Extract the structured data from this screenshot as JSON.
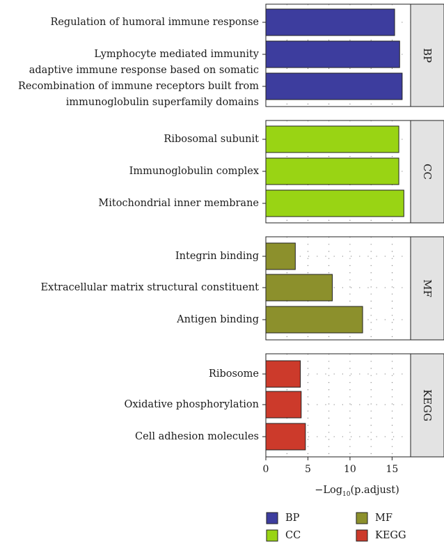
{
  "chart_data": {
    "type": "bar",
    "orientation": "horizontal",
    "xlabel": "−Log10(p.adjust)",
    "xlabel_main": "−Log",
    "xlabel_sub": "10",
    "xlabel_rest": "(p.adjust)",
    "xlim": [
      0,
      17.2
    ],
    "xticks": [
      "0",
      "5",
      "10",
      "15"
    ],
    "grid": "dotted",
    "legend_position": "bottom",
    "facets": [
      {
        "name": "BP",
        "color": "#3d3d9e",
        "items": [
          {
            "lines": [
              "Regulation of humoral immune response"
            ],
            "value": 15.3
          },
          {
            "lines": [
              "Lymphocyte mediated immunity"
            ],
            "value": 15.9
          },
          {
            "lines": [
              "adaptive immune response based on somatic",
              "Recombination of immune receptors built from",
              "immunoglobulin superfamily domains"
            ],
            "value": 16.2
          }
        ]
      },
      {
        "name": "CC",
        "color": "#99d414",
        "items": [
          {
            "lines": [
              "Ribosomal subunit"
            ],
            "value": 15.8
          },
          {
            "lines": [
              "Immunoglobulin complex"
            ],
            "value": 15.8
          },
          {
            "lines": [
              "Mitochondrial inner membrane"
            ],
            "value": 16.4
          }
        ]
      },
      {
        "name": "MF",
        "color": "#8c902c",
        "items": [
          {
            "lines": [
              "Integrin binding"
            ],
            "value": 3.5
          },
          {
            "lines": [
              "Extracellular matrix structural constituent"
            ],
            "value": 7.9
          },
          {
            "lines": [
              "Antigen binding"
            ],
            "value": 11.5
          }
        ]
      },
      {
        "name": "KEGG",
        "color": "#cc3a2b",
        "items": [
          {
            "lines": [
              "Ribosome"
            ],
            "value": 4.1
          },
          {
            "lines": [
              "Oxidative phosphorylation"
            ],
            "value": 4.2
          },
          {
            "lines": [
              "Cell adhesion molecules"
            ],
            "value": 4.7
          }
        ]
      }
    ],
    "legend": [
      {
        "label": "BP",
        "color": "#3d3d9e"
      },
      {
        "label": "MF",
        "color": "#8c902c"
      },
      {
        "label": "CC",
        "color": "#99d414"
      },
      {
        "label": "KEGG",
        "color": "#cc3a2b"
      }
    ]
  }
}
